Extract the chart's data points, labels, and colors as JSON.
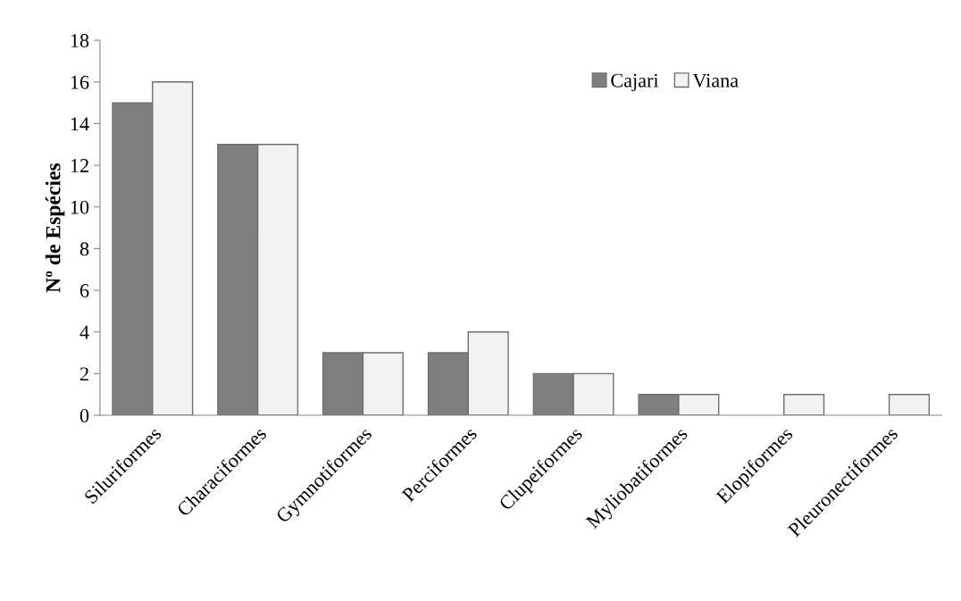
{
  "chart_data": {
    "type": "bar",
    "ylabel": "Nº de Espécies",
    "categories": [
      "Siluriformes",
      "Characiformes",
      "Gymnotiformes",
      "Perciformes",
      "Clupeiformes",
      "Myliobatiformes",
      "Elopiformes",
      "Pleuronectiformes"
    ],
    "series": [
      {
        "name": "Cajari",
        "color": "#7f7f7f",
        "values": [
          15,
          13,
          3,
          3,
          2,
          1,
          0,
          0
        ]
      },
      {
        "name": "Viana",
        "color": "#f2f2f2",
        "values": [
          16,
          13,
          3,
          4,
          2,
          1,
          1,
          1
        ]
      }
    ],
    "ylim": [
      0,
      18
    ],
    "yticks": [
      0,
      2,
      4,
      6,
      8,
      10,
      12,
      14,
      16,
      18
    ],
    "grid": false,
    "legend": "top right"
  }
}
